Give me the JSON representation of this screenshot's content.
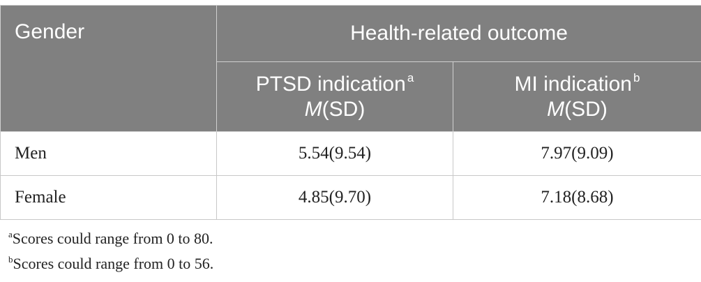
{
  "table": {
    "header": {
      "gender": "Gender",
      "group": "Health-related outcome",
      "columns": [
        {
          "label": "PTSD indication",
          "marker": "a",
          "stat_italic": "M",
          "stat_rest": "(SD)"
        },
        {
          "label": "MI indication",
          "marker": "b",
          "stat_italic": "M",
          "stat_rest": "(SD)"
        }
      ]
    },
    "rows": [
      {
        "label": "Men",
        "values": [
          "5.54(9.54)",
          "7.97(9.09)"
        ]
      },
      {
        "label": "Female",
        "values": [
          "4.85(9.70)",
          "7.18(8.68)"
        ]
      }
    ]
  },
  "footnotes": [
    {
      "marker": "a",
      "text": "Scores could range from 0 to 80."
    },
    {
      "marker": "b",
      "text": "Scores could range from 0 to 56."
    }
  ],
  "colors": {
    "header_bg": "#808080",
    "header_text": "#ffffff",
    "grid": "#c8c8c8"
  }
}
